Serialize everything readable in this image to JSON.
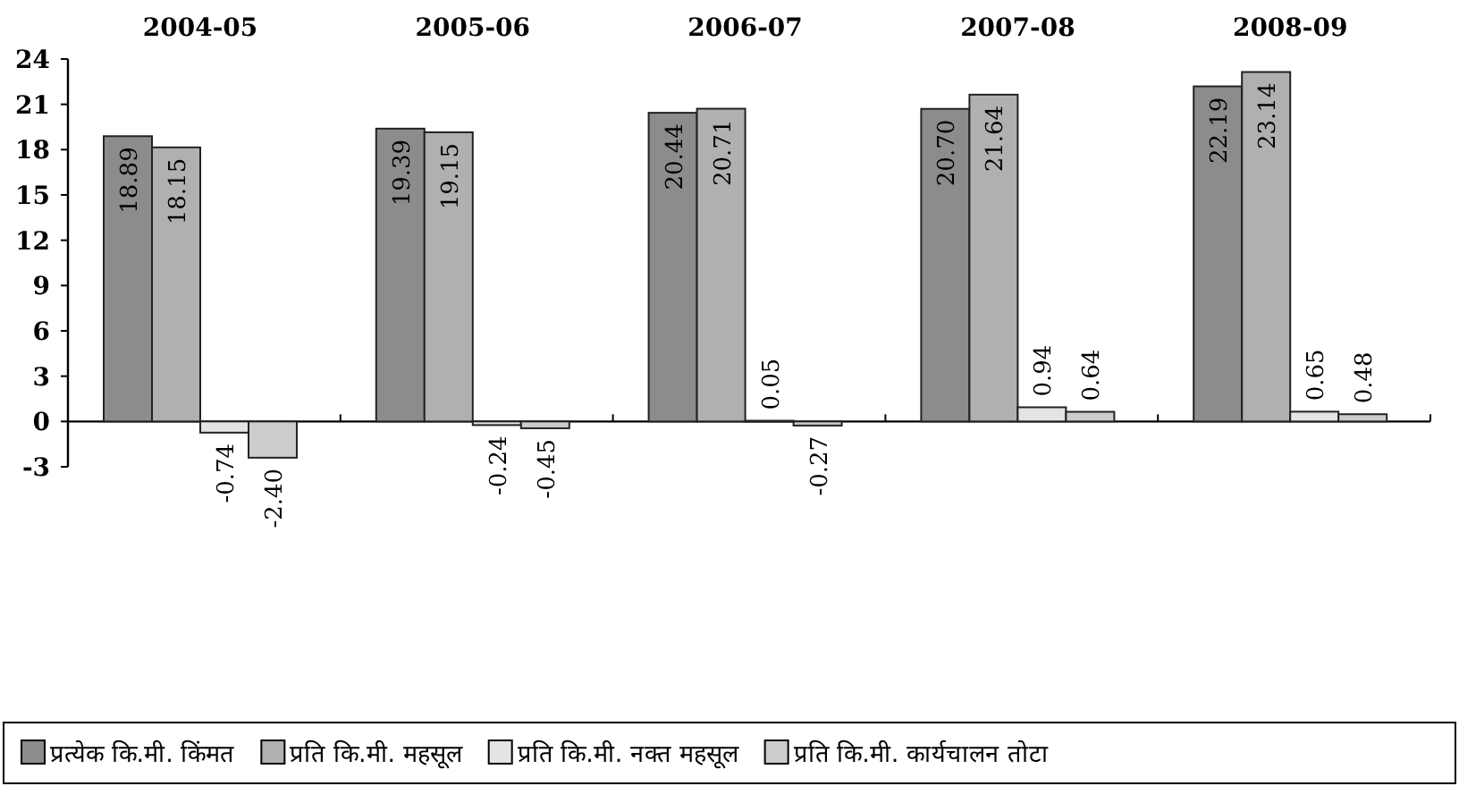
{
  "chart_data": {
    "type": "bar",
    "categories": [
      "2004-05",
      "2005-06",
      "2006-07",
      "2007-08",
      "2008-09"
    ],
    "series": [
      {
        "name": "प्रत्येक कि.मी. किंमत",
        "color": "#8c8c8c",
        "values": [
          18.89,
          19.39,
          20.44,
          20.7,
          22.19
        ],
        "value_labels": [
          "18.89",
          "19.39",
          "20.44",
          "20.70",
          "22.19"
        ]
      },
      {
        "name": "प्रति कि.मी. महसूल",
        "color": "#b0b0b0",
        "values": [
          18.15,
          19.15,
          20.71,
          21.64,
          23.14
        ],
        "value_labels": [
          "18.15",
          "19.15",
          "20.71",
          "21.64",
          "23.14"
        ]
      },
      {
        "name": "प्रति कि.मी. नक्त महसूल",
        "color": "#e4e4e4",
        "values": [
          -0.74,
          -0.24,
          0.05,
          0.94,
          0.65
        ],
        "value_labels": [
          "-0.74",
          "-0.24",
          "0.05",
          "0.94",
          "0.65"
        ]
      },
      {
        "name": "प्रति कि.मी. कार्यचालन तोटा",
        "color": "#cccccc",
        "values": [
          -2.4,
          -0.45,
          -0.27,
          0.64,
          0.48
        ],
        "value_labels": [
          "-2.40",
          "-0.45",
          "-0.27",
          "0.64",
          "0.48"
        ]
      }
    ],
    "ylim": [
      -3,
      24
    ],
    "yticks": [
      -3,
      0,
      3,
      6,
      9,
      12,
      15,
      18,
      21,
      24
    ],
    "legend": "bottom"
  }
}
